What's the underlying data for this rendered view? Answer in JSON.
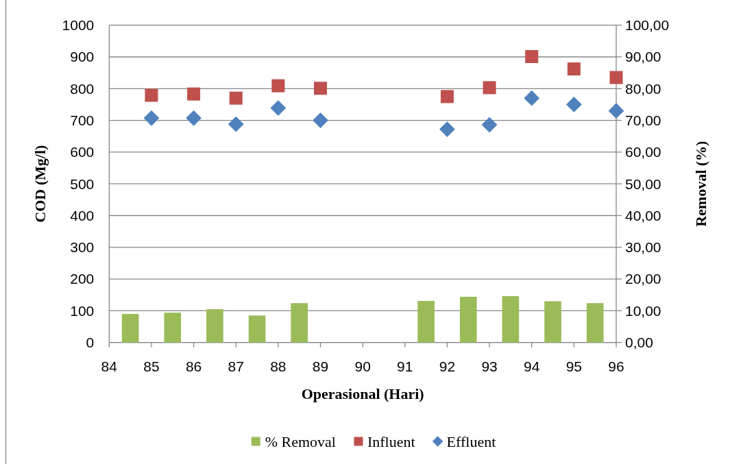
{
  "chart_data": {
    "type": "scatter",
    "xlabel": "Operasional (Hari)",
    "ylabel": "COD (Mg/l)",
    "y2label": "Removal (%)",
    "xlim": [
      84,
      96
    ],
    "xticks": [
      84,
      85,
      86,
      87,
      88,
      89,
      90,
      91,
      92,
      93,
      94,
      95,
      96
    ],
    "ylim": [
      0,
      1000
    ],
    "yticks": [
      0,
      100,
      200,
      300,
      400,
      500,
      600,
      700,
      800,
      900,
      1000
    ],
    "y2lim": [
      0,
      100
    ],
    "y2ticks": [
      {
        "value": 0,
        "label": "0,00"
      },
      {
        "value": 10,
        "label": "10,00"
      },
      {
        "value": 20,
        "label": "20,00"
      },
      {
        "value": 30,
        "label": "30,00"
      },
      {
        "value": 40,
        "label": "40,00"
      },
      {
        "value": 50,
        "label": "50,00"
      },
      {
        "value": 60,
        "label": "60,00"
      },
      {
        "value": 70,
        "label": "70,00"
      },
      {
        "value": 80,
        "label": "80,00"
      },
      {
        "value": 90,
        "label": "90,00"
      },
      {
        "value": 100,
        "label": "100,00"
      }
    ],
    "grid": "y",
    "legend": "bottom",
    "series": [
      {
        "name": "% Removal",
        "type": "bar",
        "axis": "y2",
        "color": "#9bbb59",
        "x": [
          84.5,
          85.5,
          86.5,
          87.5,
          88.5,
          91.5,
          92.5,
          93.5,
          94.5,
          95.5
        ],
        "values": [
          9.0,
          9.4,
          10.5,
          8.5,
          12.4,
          13.1,
          14.4,
          14.6,
          13.0,
          12.4
        ]
      },
      {
        "name": "Influent",
        "marker": "square",
        "color": "#c0504d",
        "x": [
          85,
          86,
          87,
          88,
          89,
          92,
          93,
          94,
          95,
          96
        ],
        "values": [
          779,
          783,
          770,
          809,
          801,
          775,
          803,
          901,
          862,
          835
        ]
      },
      {
        "name": "Effluent",
        "marker": "diamond",
        "color": "#4f81bd",
        "x": [
          85,
          86,
          87,
          88,
          89,
          92,
          93,
          94,
          95,
          96
        ],
        "values": [
          707,
          707,
          688,
          739,
          700,
          672,
          686,
          770,
          750,
          730
        ]
      }
    ]
  }
}
